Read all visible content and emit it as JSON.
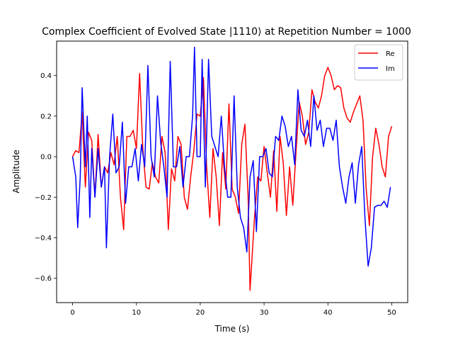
{
  "chart_data": {
    "type": "line",
    "title": "Complex Coefficient of Evolved State |1110⟩ at Repetition Number = 1000",
    "xlabel": "Time (s)",
    "ylabel": "Amplitude",
    "xlim": [
      -2.5,
      52.5
    ],
    "ylim": [
      -0.72,
      0.57
    ],
    "xticks": [
      0,
      10,
      20,
      30,
      40,
      50
    ],
    "yticks": [
      -0.6,
      -0.4,
      -0.2,
      0.0,
      0.2,
      0.4
    ],
    "xtick_labels": [
      "0",
      "10",
      "20",
      "30",
      "40",
      "50"
    ],
    "ytick_labels": [
      "−0.6",
      "−0.4",
      "−0.2",
      "0.0",
      "0.2",
      "0.4"
    ],
    "grid": false,
    "legend": "top-right",
    "series": [
      {
        "name": "Re",
        "color": "#ff0000",
        "points": [
          [
            0,
            0
          ],
          [
            0.5,
            0.03
          ],
          [
            1,
            0.02
          ],
          [
            1.5,
            0.22
          ],
          [
            2,
            -0.15
          ],
          [
            2.5,
            0.12
          ],
          [
            3,
            0.08
          ],
          [
            3.5,
            -0.2
          ],
          [
            4,
            0.11
          ],
          [
            4.5,
            -0.15
          ],
          [
            5,
            -0.05
          ],
          [
            5.5,
            -0.08
          ],
          [
            6,
            0.02
          ],
          [
            6.5,
            -0.04
          ],
          [
            7,
            0.1
          ],
          [
            7.5,
            -0.2
          ],
          [
            8,
            -0.36
          ],
          [
            8.5,
            0.1
          ],
          [
            9,
            0.1
          ],
          [
            9.5,
            0.13
          ],
          [
            10,
            0.04
          ],
          [
            10.5,
            0.41
          ],
          [
            11,
            0.04
          ],
          [
            11.5,
            -0.15
          ],
          [
            12,
            -0.16
          ],
          [
            12.5,
            -0.03
          ],
          [
            13,
            -0.1
          ],
          [
            13.5,
            -0.13
          ],
          [
            14,
            0.1
          ],
          [
            14.5,
            0.02
          ],
          [
            15,
            -0.36
          ],
          [
            15.5,
            -0.06
          ],
          [
            16,
            -0.12
          ],
          [
            16.5,
            0.1
          ],
          [
            17,
            0.06
          ],
          [
            17.5,
            -0.2
          ],
          [
            18,
            -0.26
          ],
          [
            18.5,
            -0.1
          ],
          [
            19,
            0.03
          ],
          [
            19.5,
            0.21
          ],
          [
            20,
            0.2
          ],
          [
            20.5,
            0.39
          ],
          [
            21,
            -0.05
          ],
          [
            21.5,
            -0.3
          ],
          [
            22,
            0.04
          ],
          [
            22.5,
            -0.1
          ],
          [
            23,
            -0.34
          ],
          [
            23.5,
            0.02
          ],
          [
            24,
            -0.16
          ],
          [
            24.5,
            0.26
          ],
          [
            25,
            -0.16
          ],
          [
            25.5,
            -0.2
          ],
          [
            26,
            -0.28
          ],
          [
            26.5,
            0.06
          ],
          [
            27,
            0.16
          ],
          [
            27.5,
            -0.2
          ],
          [
            27.8,
            -0.66
          ],
          [
            28.5,
            -0.3
          ],
          [
            29,
            -0.1
          ],
          [
            29.5,
            -0.12
          ],
          [
            30,
            0.05
          ],
          [
            30.5,
            -0.08
          ],
          [
            31,
            -0.2
          ],
          [
            31.5,
            0.03
          ],
          [
            32,
            -0.27
          ],
          [
            32.5,
            0.1
          ],
          [
            33,
            -0.03
          ],
          [
            33.5,
            -0.29
          ],
          [
            34,
            -0.05
          ],
          [
            34.5,
            -0.24
          ],
          [
            35,
            0.02
          ],
          [
            35.5,
            0.27
          ],
          [
            36,
            0.2
          ],
          [
            36.5,
            0.06
          ],
          [
            37,
            0.12
          ],
          [
            37.5,
            0.33
          ],
          [
            38,
            0.27
          ],
          [
            38.5,
            0.24
          ],
          [
            39,
            0.3
          ],
          [
            39.5,
            0.4
          ],
          [
            40,
            0.44
          ],
          [
            40.5,
            0.4
          ],
          [
            41,
            0.33
          ],
          [
            41.5,
            0.35
          ],
          [
            42,
            0.34
          ],
          [
            42.5,
            0.24
          ],
          [
            43,
            0.19
          ],
          [
            43.5,
            0.17
          ],
          [
            44,
            0.22
          ],
          [
            44.5,
            0.26
          ],
          [
            45,
            0.3
          ],
          [
            45.5,
            0.18
          ],
          [
            46,
            -0.16
          ],
          [
            46.5,
            -0.34
          ],
          [
            47,
            0.0
          ],
          [
            47.5,
            0.14
          ],
          [
            48,
            0.06
          ],
          [
            48.5,
            -0.05
          ],
          [
            49,
            -0.1
          ],
          [
            49.5,
            0.1
          ],
          [
            50,
            0.15
          ]
        ]
      },
      {
        "name": "Im",
        "color": "#0000ff",
        "points": [
          [
            0,
            0
          ],
          [
            0.5,
            -0.1
          ],
          [
            0.8,
            -0.35
          ],
          [
            1.2,
            -0.1
          ],
          [
            1.5,
            0.34
          ],
          [
            2,
            -0.05
          ],
          [
            2.3,
            0.2
          ],
          [
            2.7,
            -0.3
          ],
          [
            3,
            0.04
          ],
          [
            3.5,
            -0.2
          ],
          [
            4,
            0.04
          ],
          [
            4.5,
            -0.15
          ],
          [
            5,
            -0.05
          ],
          [
            5.3,
            -0.45
          ],
          [
            5.8,
            0.0
          ],
          [
            6.3,
            0.21
          ],
          [
            6.8,
            -0.08
          ],
          [
            7.3,
            -0.05
          ],
          [
            7.8,
            0.17
          ],
          [
            8.3,
            -0.23
          ],
          [
            8.8,
            -0.05
          ],
          [
            9.3,
            -0.05
          ],
          [
            9.8,
            0.04
          ],
          [
            10.3,
            -0.12
          ],
          [
            10.8,
            0.06
          ],
          [
            11.3,
            -0.05
          ],
          [
            11.8,
            0.45
          ],
          [
            12.3,
            0.0
          ],
          [
            12.8,
            -0.1
          ],
          [
            13.3,
            0.3
          ],
          [
            13.8,
            0.07
          ],
          [
            14.3,
            -0.05
          ],
          [
            14.8,
            -0.2
          ],
          [
            15.3,
            0.47
          ],
          [
            15.8,
            -0.05
          ],
          [
            16.3,
            -0.05
          ],
          [
            16.8,
            0.05
          ],
          [
            17.3,
            -0.15
          ],
          [
            17.8,
            0.0
          ],
          [
            18.3,
            0.0
          ],
          [
            18.8,
            0.2
          ],
          [
            19.1,
            0.54
          ],
          [
            19.5,
            0.0
          ],
          [
            20,
            0.0
          ],
          [
            20.3,
            0.48
          ],
          [
            20.8,
            -0.15
          ],
          [
            21.3,
            0.48
          ],
          [
            21.8,
            0.1
          ],
          [
            22.3,
            0.05
          ],
          [
            22.8,
            0.0
          ],
          [
            23.3,
            0.2
          ],
          [
            23.8,
            -0.05
          ],
          [
            24.3,
            -0.2
          ],
          [
            24.8,
            -0.2
          ],
          [
            25.3,
            0.3
          ],
          [
            25.8,
            -0.15
          ],
          [
            26.3,
            -0.3
          ],
          [
            26.8,
            -0.35
          ],
          [
            27.3,
            -0.47
          ],
          [
            27.8,
            -0.1
          ],
          [
            28.3,
            -0.02
          ],
          [
            28.8,
            -0.37
          ],
          [
            29.3,
            0.0
          ],
          [
            29.8,
            0.0
          ],
          [
            30.3,
            0.04
          ],
          [
            30.8,
            -0.08
          ],
          [
            31.3,
            -0.1
          ],
          [
            31.8,
            0.1
          ],
          [
            32.3,
            0.08
          ],
          [
            32.8,
            0.2
          ],
          [
            33.3,
            0.15
          ],
          [
            33.8,
            0.05
          ],
          [
            34.3,
            0.1
          ],
          [
            34.8,
            -0.04
          ],
          [
            35.3,
            0.33
          ],
          [
            35.8,
            0.13
          ],
          [
            36.3,
            0.1
          ],
          [
            36.8,
            0.18
          ],
          [
            37.3,
            0.05
          ],
          [
            37.8,
            0.3
          ],
          [
            38.3,
            0.13
          ],
          [
            38.8,
            0.18
          ],
          [
            39.3,
            0.05
          ],
          [
            39.8,
            0.14
          ],
          [
            40.3,
            0.14
          ],
          [
            40.8,
            0.08
          ],
          [
            41.3,
            0.18
          ],
          [
            41.8,
            -0.05
          ],
          [
            42.3,
            -0.15
          ],
          [
            42.8,
            -0.23
          ],
          [
            43.3,
            -0.1
          ],
          [
            43.8,
            -0.03
          ],
          [
            44.3,
            -0.23
          ],
          [
            44.8,
            -0.04
          ],
          [
            45.3,
            0.05
          ],
          [
            45.8,
            -0.3
          ],
          [
            46.3,
            -0.54
          ],
          [
            46.8,
            -0.45
          ],
          [
            47.3,
            -0.25
          ],
          [
            47.8,
            -0.24
          ],
          [
            48.3,
            -0.24
          ],
          [
            48.8,
            -0.22
          ],
          [
            49.3,
            -0.25
          ],
          [
            49.8,
            -0.15
          ]
        ]
      }
    ]
  }
}
